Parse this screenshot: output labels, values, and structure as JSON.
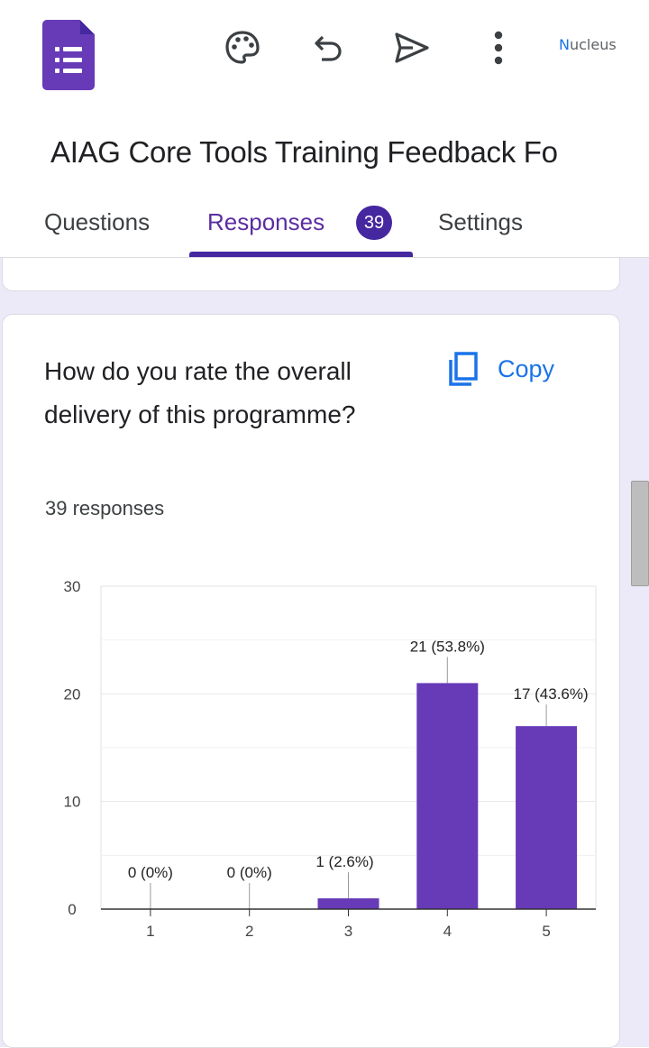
{
  "topbar": {
    "icons": [
      "forms-logo-icon",
      "palette-icon",
      "undo-icon",
      "send-icon",
      "more-vert-icon"
    ],
    "brand": "Nucleus"
  },
  "form": {
    "title": "AIAG Core Tools Training Feedback Fo"
  },
  "tabs": {
    "questions": "Questions",
    "responses": "Responses",
    "responses_count": "39",
    "settings": "Settings",
    "active": "responses"
  },
  "question_card": {
    "question": "How do you rate the overall delivery of this programme?",
    "copy_label": "Copy",
    "responses_summary": "39 responses"
  },
  "colors": {
    "accent": "#673ab7",
    "bar": "#673ab7",
    "link": "#1a73e8"
  },
  "chart_data": {
    "type": "bar",
    "categories": [
      "1",
      "2",
      "3",
      "4",
      "5"
    ],
    "values": [
      0,
      0,
      1,
      21,
      17
    ],
    "labels": [
      "0 (0%)",
      "0 (0%)",
      "1 (2.6%)",
      "21 (53.8%)",
      "17 (43.6%)"
    ],
    "yticks": [
      "0",
      "10",
      "20",
      "30"
    ],
    "ylim": [
      0,
      30
    ],
    "grid": true,
    "title": "",
    "xlabel": "",
    "ylabel": ""
  }
}
